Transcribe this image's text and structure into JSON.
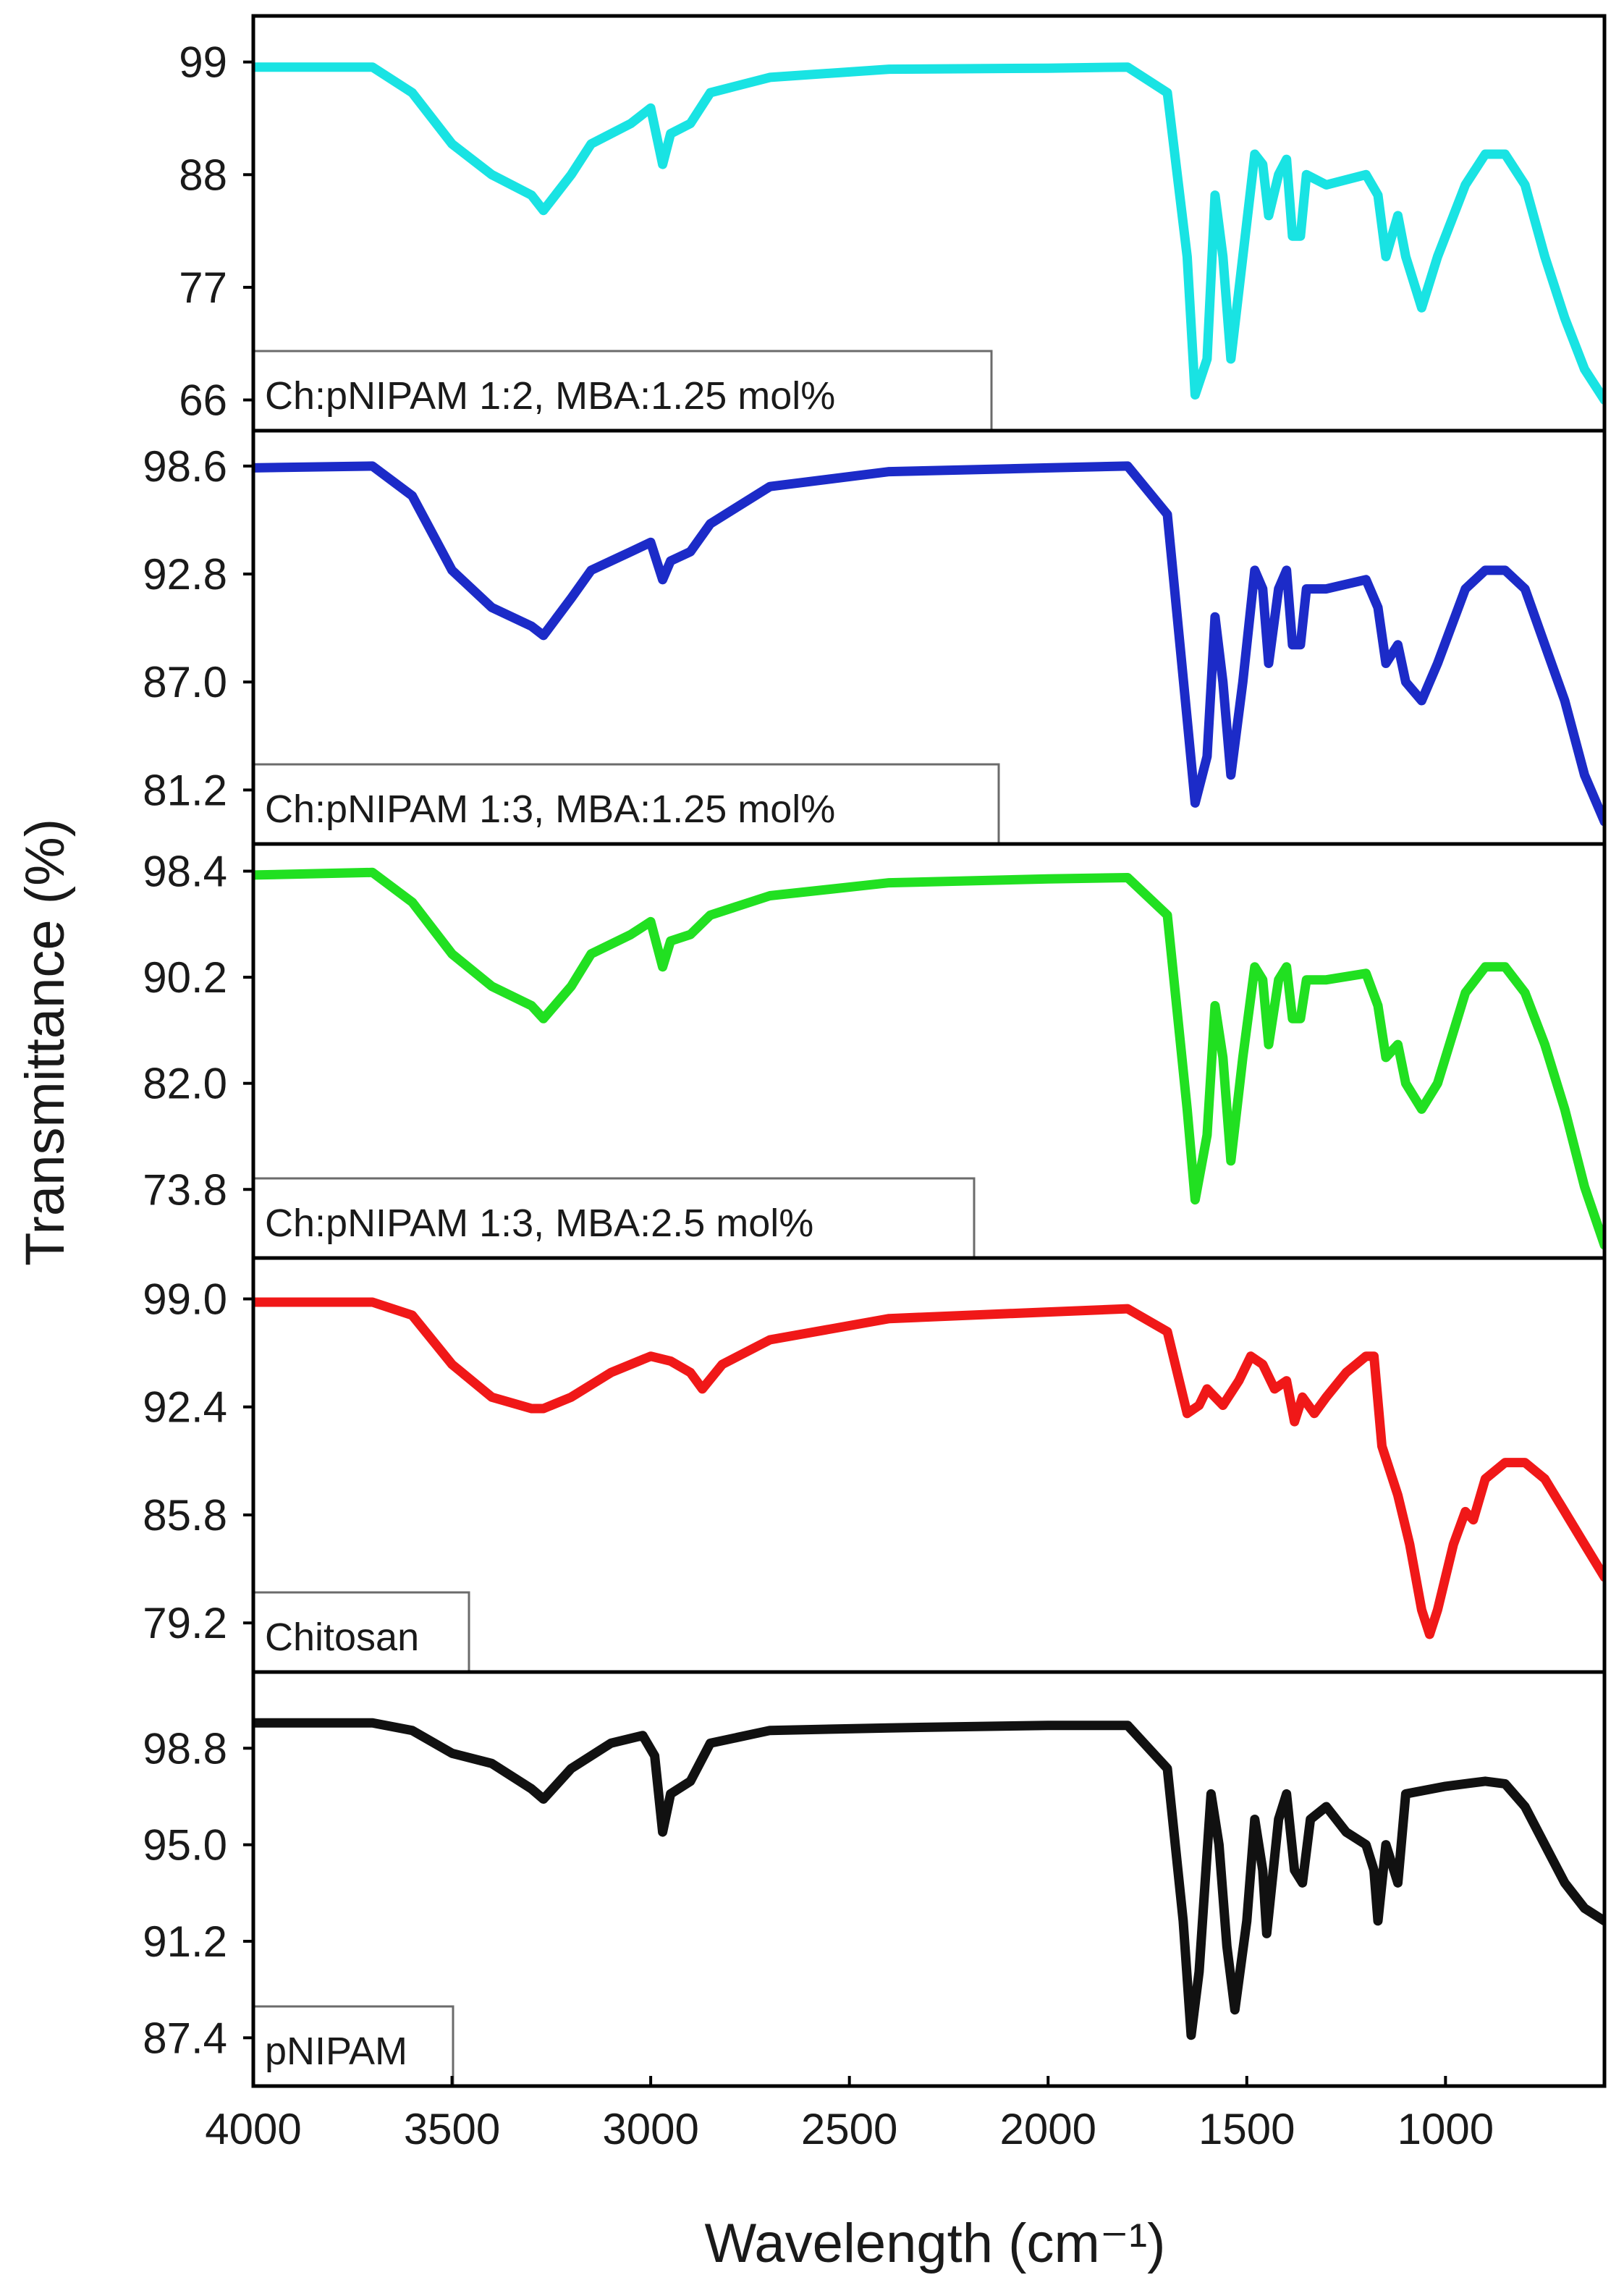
{
  "chart_data": {
    "type": "line",
    "xlabel": "Wavelength (cm⁻¹)",
    "ylabel": "Transmittance (%)",
    "xlim": [
      4000,
      600
    ],
    "x_ticks": [
      "4000",
      "3500",
      "3000",
      "2500",
      "2000",
      "1500",
      "1000"
    ],
    "x_tick_values": [
      4000,
      3500,
      3000,
      2500,
      2000,
      1500,
      1000
    ],
    "panels": [
      {
        "legend": "Ch:pNIPAM 1:2, MBA:1.25 mol%",
        "color": "#19e3e3",
        "y_ticks": [
          "99",
          "88",
          "77",
          "66"
        ],
        "y_tick_values": [
          99,
          88,
          77,
          66
        ],
        "ylim": [
          63,
          103.5
        ],
        "points": [
          [
            4000,
            98.5
          ],
          [
            3700,
            98.5
          ],
          [
            3600,
            96
          ],
          [
            3500,
            91
          ],
          [
            3400,
            88
          ],
          [
            3300,
            86
          ],
          [
            3270,
            84.5
          ],
          [
            3200,
            88
          ],
          [
            3150,
            91
          ],
          [
            3050,
            93
          ],
          [
            3000,
            94.5
          ],
          [
            2970,
            89
          ],
          [
            2950,
            92
          ],
          [
            2900,
            93
          ],
          [
            2850,
            96
          ],
          [
            2700,
            97.5
          ],
          [
            2400,
            98.3
          ],
          [
            2000,
            98.4
          ],
          [
            1800,
            98.5
          ],
          [
            1700,
            96
          ],
          [
            1650,
            80
          ],
          [
            1630,
            66.5
          ],
          [
            1600,
            70
          ],
          [
            1580,
            86
          ],
          [
            1560,
            80
          ],
          [
            1540,
            70
          ],
          [
            1510,
            80
          ],
          [
            1480,
            90
          ],
          [
            1460,
            89
          ],
          [
            1445,
            84
          ],
          [
            1420,
            88
          ],
          [
            1400,
            89.5
          ],
          [
            1385,
            82
          ],
          [
            1365,
            82
          ],
          [
            1350,
            88
          ],
          [
            1300,
            87
          ],
          [
            1200,
            88
          ],
          [
            1170,
            86
          ],
          [
            1150,
            80
          ],
          [
            1120,
            84
          ],
          [
            1100,
            80
          ],
          [
            1060,
            75
          ],
          [
            1020,
            80
          ],
          [
            950,
            87
          ],
          [
            900,
            90
          ],
          [
            850,
            90
          ],
          [
            800,
            87
          ],
          [
            750,
            80
          ],
          [
            700,
            74
          ],
          [
            650,
            69
          ],
          [
            600,
            66
          ]
        ]
      },
      {
        "legend": "Ch:pNIPAM 1:3, MBA:1.25 mol%",
        "color": "#1c2bc8",
        "y_ticks": [
          "98.6",
          "92.8",
          "87.0",
          "81.2"
        ],
        "y_tick_values": [
          98.6,
          92.8,
          87.0,
          81.2
        ],
        "ylim": [
          78.3,
          100.5
        ],
        "points": [
          [
            4000,
            98.5
          ],
          [
            3700,
            98.6
          ],
          [
            3600,
            97
          ],
          [
            3500,
            93
          ],
          [
            3400,
            91
          ],
          [
            3300,
            90
          ],
          [
            3270,
            89.5
          ],
          [
            3200,
            91.5
          ],
          [
            3150,
            93
          ],
          [
            3050,
            94
          ],
          [
            3000,
            94.5
          ],
          [
            2970,
            92.5
          ],
          [
            2950,
            93.5
          ],
          [
            2900,
            94
          ],
          [
            2850,
            95.5
          ],
          [
            2700,
            97.5
          ],
          [
            2400,
            98.3
          ],
          [
            2000,
            98.5
          ],
          [
            1800,
            98.6
          ],
          [
            1700,
            96
          ],
          [
            1650,
            85
          ],
          [
            1630,
            80.5
          ],
          [
            1600,
            83
          ],
          [
            1580,
            90.5
          ],
          [
            1560,
            87
          ],
          [
            1540,
            82
          ],
          [
            1510,
            87
          ],
          [
            1480,
            93
          ],
          [
            1460,
            92
          ],
          [
            1445,
            88
          ],
          [
            1420,
            92
          ],
          [
            1400,
            93
          ],
          [
            1385,
            89
          ],
          [
            1365,
            89
          ],
          [
            1350,
            92
          ],
          [
            1300,
            92
          ],
          [
            1200,
            92.5
          ],
          [
            1170,
            91
          ],
          [
            1150,
            88
          ],
          [
            1120,
            89
          ],
          [
            1100,
            87
          ],
          [
            1060,
            86
          ],
          [
            1020,
            88
          ],
          [
            950,
            92
          ],
          [
            900,
            93
          ],
          [
            850,
            93
          ],
          [
            800,
            92
          ],
          [
            750,
            89
          ],
          [
            700,
            86
          ],
          [
            650,
            82
          ],
          [
            600,
            79.5
          ]
        ]
      },
      {
        "legend": "Ch:pNIPAM 1:3, MBA:2.5 mol%",
        "color": "#21e021",
        "y_ticks": [
          "98.4",
          "90.2",
          "82.0",
          "73.8"
        ],
        "y_tick_values": [
          98.4,
          90.2,
          82.0,
          73.8
        ],
        "ylim": [
          68.5,
          100.5
        ],
        "points": [
          [
            4000,
            98.1
          ],
          [
            3700,
            98.3
          ],
          [
            3600,
            96
          ],
          [
            3500,
            92
          ],
          [
            3400,
            89.5
          ],
          [
            3300,
            88
          ],
          [
            3270,
            87
          ],
          [
            3200,
            89.5
          ],
          [
            3150,
            92
          ],
          [
            3050,
            93.5
          ],
          [
            3000,
            94.5
          ],
          [
            2970,
            91
          ],
          [
            2950,
            93
          ],
          [
            2900,
            93.5
          ],
          [
            2850,
            95
          ],
          [
            2700,
            96.5
          ],
          [
            2400,
            97.5
          ],
          [
            2000,
            97.8
          ],
          [
            1800,
            97.9
          ],
          [
            1700,
            95
          ],
          [
            1650,
            80
          ],
          [
            1630,
            73
          ],
          [
            1600,
            78
          ],
          [
            1580,
            88
          ],
          [
            1560,
            84
          ],
          [
            1540,
            76
          ],
          [
            1510,
            84
          ],
          [
            1480,
            91
          ],
          [
            1460,
            90
          ],
          [
            1445,
            85
          ],
          [
            1420,
            90
          ],
          [
            1400,
            91
          ],
          [
            1385,
            87
          ],
          [
            1365,
            87
          ],
          [
            1350,
            90
          ],
          [
            1300,
            90
          ],
          [
            1200,
            90.5
          ],
          [
            1170,
            88
          ],
          [
            1150,
            84
          ],
          [
            1120,
            85
          ],
          [
            1100,
            82
          ],
          [
            1060,
            80
          ],
          [
            1020,
            82
          ],
          [
            950,
            89
          ],
          [
            900,
            91
          ],
          [
            850,
            91
          ],
          [
            800,
            89
          ],
          [
            750,
            85
          ],
          [
            700,
            80
          ],
          [
            650,
            74
          ],
          [
            600,
            69.5
          ]
        ]
      },
      {
        "legend": "Chitosan",
        "color": "#f01818",
        "y_ticks": [
          "99.0",
          "92.4",
          "85.8",
          "79.2"
        ],
        "y_tick_values": [
          99.0,
          92.4,
          85.8,
          79.2
        ],
        "ylim": [
          76.2,
          101.5
        ],
        "points": [
          [
            4000,
            98.8
          ],
          [
            3700,
            98.8
          ],
          [
            3600,
            98
          ],
          [
            3500,
            95
          ],
          [
            3400,
            93
          ],
          [
            3300,
            92.3
          ],
          [
            3270,
            92.3
          ],
          [
            3200,
            93
          ],
          [
            3100,
            94.5
          ],
          [
            3000,
            95.5
          ],
          [
            2950,
            95.2
          ],
          [
            2900,
            94.5
          ],
          [
            2870,
            93.5
          ],
          [
            2820,
            95
          ],
          [
            2700,
            96.5
          ],
          [
            2400,
            97.8
          ],
          [
            2000,
            98.2
          ],
          [
            1800,
            98.4
          ],
          [
            1700,
            97
          ],
          [
            1650,
            92
          ],
          [
            1620,
            92.5
          ],
          [
            1600,
            93.5
          ],
          [
            1560,
            92.5
          ],
          [
            1520,
            94
          ],
          [
            1490,
            95.5
          ],
          [
            1460,
            95
          ],
          [
            1430,
            93.5
          ],
          [
            1400,
            94
          ],
          [
            1380,
            91.5
          ],
          [
            1360,
            93
          ],
          [
            1330,
            92
          ],
          [
            1300,
            93
          ],
          [
            1250,
            94.5
          ],
          [
            1200,
            95.5
          ],
          [
            1180,
            95.5
          ],
          [
            1160,
            90
          ],
          [
            1140,
            88.5
          ],
          [
            1120,
            87
          ],
          [
            1090,
            84
          ],
          [
            1060,
            80
          ],
          [
            1040,
            78.5
          ],
          [
            1020,
            80
          ],
          [
            980,
            84
          ],
          [
            950,
            86
          ],
          [
            930,
            85.5
          ],
          [
            900,
            88
          ],
          [
            850,
            89
          ],
          [
            800,
            89
          ],
          [
            750,
            88
          ],
          [
            700,
            86
          ],
          [
            650,
            84
          ],
          [
            600,
            82
          ]
        ]
      },
      {
        "legend": "pNIPAM",
        "color": "#111111",
        "y_ticks": [
          "98.8",
          "95.0",
          "91.2",
          "87.4"
        ],
        "y_tick_values": [
          98.8,
          95.0,
          91.2,
          87.4
        ],
        "ylim": [
          85.5,
          101.8
        ],
        "points": [
          [
            4000,
            99.8
          ],
          [
            3700,
            99.8
          ],
          [
            3600,
            99.5
          ],
          [
            3500,
            98.6
          ],
          [
            3400,
            98.2
          ],
          [
            3300,
            97.2
          ],
          [
            3270,
            96.8
          ],
          [
            3200,
            98
          ],
          [
            3100,
            99
          ],
          [
            3020,
            99.3
          ],
          [
            2990,
            98.5
          ],
          [
            2970,
            95.5
          ],
          [
            2950,
            97
          ],
          [
            2900,
            97.5
          ],
          [
            2850,
            99
          ],
          [
            2700,
            99.5
          ],
          [
            2400,
            99.6
          ],
          [
            2000,
            99.7
          ],
          [
            1800,
            99.7
          ],
          [
            1700,
            98
          ],
          [
            1660,
            92
          ],
          [
            1640,
            87.5
          ],
          [
            1620,
            90
          ],
          [
            1590,
            97
          ],
          [
            1570,
            95
          ],
          [
            1550,
            91
          ],
          [
            1530,
            88.5
          ],
          [
            1500,
            92
          ],
          [
            1480,
            96
          ],
          [
            1460,
            94
          ],
          [
            1450,
            91.5
          ],
          [
            1420,
            96
          ],
          [
            1400,
            97
          ],
          [
            1380,
            94
          ],
          [
            1360,
            93.5
          ],
          [
            1340,
            96
          ],
          [
            1300,
            96.5
          ],
          [
            1250,
            95.5
          ],
          [
            1200,
            95
          ],
          [
            1180,
            94
          ],
          [
            1170,
            92
          ],
          [
            1150,
            95
          ],
          [
            1130,
            94
          ],
          [
            1120,
            93.5
          ],
          [
            1100,
            97
          ],
          [
            1000,
            97.3
          ],
          [
            900,
            97.5
          ],
          [
            850,
            97.4
          ],
          [
            800,
            96.5
          ],
          [
            750,
            95
          ],
          [
            700,
            93.5
          ],
          [
            650,
            92.5
          ],
          [
            600,
            92
          ]
        ]
      }
    ]
  }
}
